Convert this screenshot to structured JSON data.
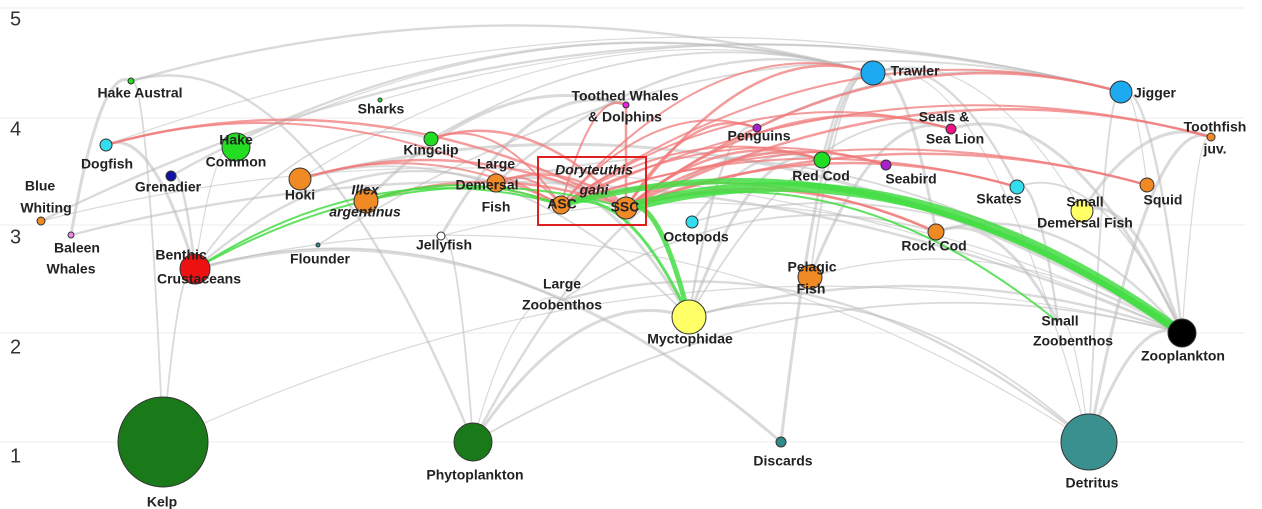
{
  "axis_labels": [
    1,
    2,
    3,
    4,
    5
  ],
  "nodes": [
    {
      "label": [
        "Kelp"
      ],
      "color": "#1a7a1a"
    },
    {
      "label": [
        "Phytoplankton"
      ],
      "color": "#1a7a1a"
    },
    {
      "label": [
        "Discards"
      ],
      "color": "#2e8b8b"
    },
    {
      "label": [
        "Detritus"
      ],
      "color": "#3a8f8f"
    },
    {
      "label": [
        "Zooplankton"
      ],
      "color": "#000000"
    },
    {
      "label": [
        "Small",
        "Zoobenthos"
      ],
      "color": "#cccccc"
    },
    {
      "label": [
        "Myctophidae"
      ],
      "color": "#ffff66"
    },
    {
      "label": [
        "Large",
        "Zoobenthos"
      ],
      "color": "#cccccc"
    },
    {
      "label": [
        "Pelagic",
        "Fish"
      ],
      "color": "#f08a24"
    },
    {
      "label": [
        "Benthic",
        "Crustaceans"
      ],
      "color": "#ee1111"
    },
    {
      "label": [
        "Baleen",
        "Whales"
      ],
      "color": "#ee88ee"
    },
    {
      "label": [
        "Flounder"
      ],
      "color": "#2e8b8b"
    },
    {
      "label": [
        "Jellyfish"
      ],
      "color": "#ffffff"
    },
    {
      "label": [
        "Octopods"
      ],
      "color": "#33ddee"
    },
    {
      "label": [
        "Rock Cod"
      ],
      "color": "#f08a24"
    },
    {
      "label": [
        "Small",
        "Demersal Fish"
      ],
      "color": "#ffff66"
    },
    {
      "label": [
        "Blue",
        "Whiting"
      ],
      "color": "#f08a24"
    },
    {
      "label": [
        "Skates"
      ],
      "color": "#33ddee"
    },
    {
      "label": [
        "Squid"
      ],
      "color": "#f08a24"
    },
    {
      "label": [
        "Hoki"
      ],
      "color": "#f08a24"
    },
    {
      "label": [
        "Illex",
        "argentinus"
      ],
      "color": "#f08a24"
    },
    {
      "label": [
        "Large",
        "Demersal",
        "Fish"
      ],
      "color": "#f08a24"
    },
    {
      "label": [
        "ASC"
      ],
      "color": "#f08a24"
    },
    {
      "label": [
        "SSC"
      ],
      "color": "#f08a24"
    },
    {
      "label": [
        "Doryteuthis",
        "gahi"
      ],
      "color": "#f08a24"
    },
    {
      "label": [
        "Grenadier"
      ],
      "color": "#1111aa"
    },
    {
      "label": [
        "Dogfish"
      ],
      "color": "#33ddee"
    },
    {
      "label": [
        "Hake",
        "Common"
      ],
      "color": "#22dd22"
    },
    {
      "label": [
        "Kingclip"
      ],
      "color": "#22dd22"
    },
    {
      "label": [
        "Hake Austral"
      ],
      "color": "#22dd22"
    },
    {
      "label": [
        "Sharks"
      ],
      "color": "#22dd22"
    },
    {
      "label": [
        "Toothed Whales",
        "& Dolphins"
      ],
      "color": "#ee22ee"
    },
    {
      "label": [
        "Penguins"
      ],
      "color": "#aa22cc"
    },
    {
      "label": [
        "Red Cod"
      ],
      "color": "#22dd22"
    },
    {
      "label": [
        "Seabird"
      ],
      "color": "#aa22cc"
    },
    {
      "label": [
        "Seals &",
        "Sea Lion"
      ],
      "color": "#ee1188"
    },
    {
      "label": [
        "Toothfish",
        "juv."
      ],
      "color": "#f08a24"
    },
    {
      "label": [
        "Trawler"
      ],
      "color": "#1eaaf0"
    },
    {
      "label": [
        "Jigger"
      ],
      "color": "#1eaaf0"
    }
  ]
}
